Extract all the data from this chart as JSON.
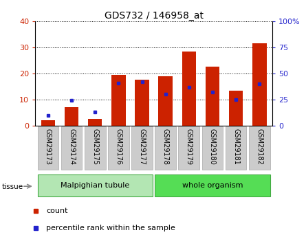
{
  "title": "GDS732 / 146958_at",
  "categories": [
    "GSM29173",
    "GSM29174",
    "GSM29175",
    "GSM29176",
    "GSM29177",
    "GSM29178",
    "GSM29179",
    "GSM29180",
    "GSM29181",
    "GSM29182"
  ],
  "counts": [
    2.0,
    7.0,
    2.5,
    19.5,
    17.5,
    19.0,
    28.5,
    22.5,
    13.5,
    31.5
  ],
  "percentiles": [
    10.0,
    24.0,
    13.0,
    41.0,
    42.0,
    30.0,
    36.5,
    32.0,
    25.0,
    40.0
  ],
  "tissue_groups": [
    {
      "label": "Malpighian tubule",
      "start": 0,
      "end": 4,
      "color": "#b3e6b3"
    },
    {
      "label": "whole organism",
      "start": 5,
      "end": 9,
      "color": "#55dd55"
    }
  ],
  "ylim_left": [
    0,
    40
  ],
  "ylim_right": [
    0,
    100
  ],
  "yticks_left": [
    0,
    10,
    20,
    30,
    40
  ],
  "yticks_right": [
    0,
    25,
    50,
    75,
    100
  ],
  "bar_color": "#cc2200",
  "dot_color": "#2222cc",
  "background_color": "#ffffff",
  "plot_bg": "#ffffff",
  "tick_label_color_left": "#cc2200",
  "tick_label_color_right": "#2222cc",
  "legend_count_label": "count",
  "legend_pct_label": "percentile rank within the sample",
  "title_fontsize": 10,
  "axis_fontsize": 8,
  "label_fontsize": 7,
  "legend_fontsize": 8
}
